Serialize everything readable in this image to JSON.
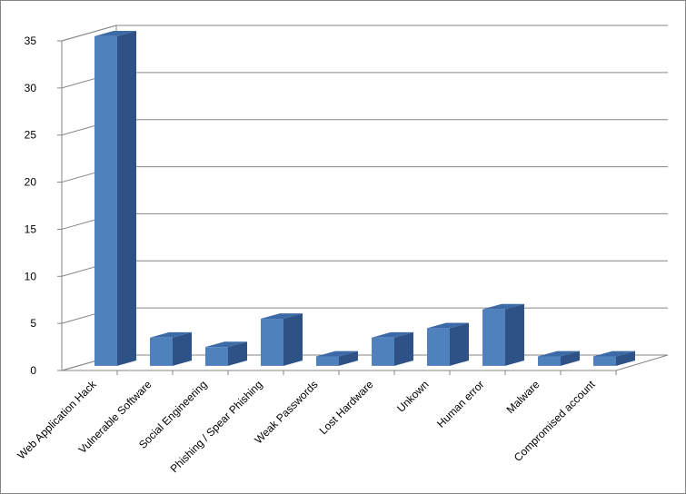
{
  "chart_data": {
    "type": "bar3d",
    "categories": [
      "Web Application Hack",
      "Vulnerable Software",
      "Social Engineering",
      "Phishing / Spear Phishing",
      "Weak Passwords",
      "Lost Hardware",
      "Unkown",
      "Human error",
      "Malware",
      "Compromised account"
    ],
    "values": [
      35,
      3,
      2,
      5,
      1,
      3,
      4,
      6,
      1,
      1
    ],
    "color": "#4f81bd",
    "ylim": [
      0,
      35
    ],
    "yticks": [
      0,
      5,
      10,
      15,
      20,
      25,
      30,
      35
    ],
    "grid": true
  }
}
